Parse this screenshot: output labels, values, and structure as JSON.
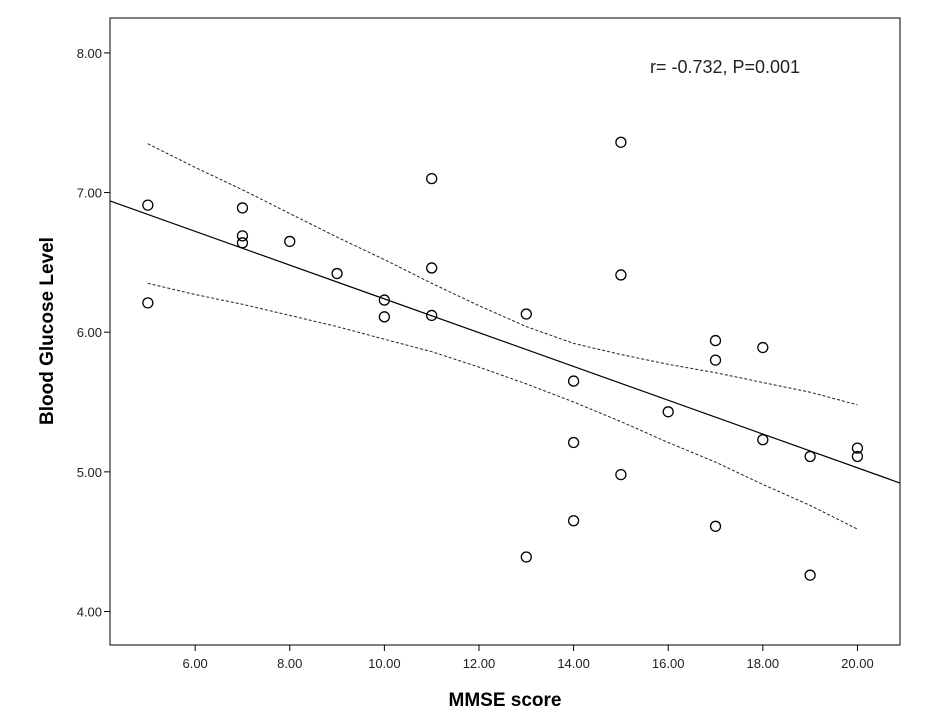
{
  "chart_data": {
    "type": "scatter",
    "title": "",
    "xlabel": "MMSE score",
    "ylabel": "Blood Glucose Level",
    "xlim": [
      4.2,
      20.9
    ],
    "ylim": [
      3.76,
      8.25
    ],
    "x_ticks": [
      6,
      8,
      10,
      12,
      14,
      16,
      18,
      20
    ],
    "x_tick_labels": [
      "6.00",
      "8.00",
      "10.00",
      "12.00",
      "14.00",
      "16.00",
      "18.00",
      "20.00"
    ],
    "y_ticks": [
      4,
      5,
      6,
      7,
      8
    ],
    "y_tick_labels": [
      "4.00",
      "5.00",
      "6.00",
      "7.00",
      "8.00"
    ],
    "grid": false,
    "annotation": "r= -0.732, P=0.001",
    "points": [
      {
        "x": 5,
        "y": 6.91
      },
      {
        "x": 5,
        "y": 6.21
      },
      {
        "x": 7,
        "y": 6.89
      },
      {
        "x": 7,
        "y": 6.69
      },
      {
        "x": 7,
        "y": 6.64
      },
      {
        "x": 8,
        "y": 6.65
      },
      {
        "x": 9,
        "y": 6.42
      },
      {
        "x": 10,
        "y": 6.23
      },
      {
        "x": 10,
        "y": 6.11
      },
      {
        "x": 11,
        "y": 7.1
      },
      {
        "x": 11,
        "y": 6.46
      },
      {
        "x": 11,
        "y": 6.12
      },
      {
        "x": 13,
        "y": 6.13
      },
      {
        "x": 13,
        "y": 4.39
      },
      {
        "x": 14,
        "y": 5.65
      },
      {
        "x": 14,
        "y": 5.21
      },
      {
        "x": 14,
        "y": 4.65
      },
      {
        "x": 15,
        "y": 7.36
      },
      {
        "x": 15,
        "y": 6.41
      },
      {
        "x": 15,
        "y": 4.98
      },
      {
        "x": 16,
        "y": 5.43
      },
      {
        "x": 17,
        "y": 5.94
      },
      {
        "x": 17,
        "y": 5.8
      },
      {
        "x": 17,
        "y": 4.61
      },
      {
        "x": 18,
        "y": 5.89
      },
      {
        "x": 18,
        "y": 5.23
      },
      {
        "x": 19,
        "y": 5.11
      },
      {
        "x": 19,
        "y": 4.26
      },
      {
        "x": 20,
        "y": 5.17
      },
      {
        "x": 20,
        "y": 5.11
      }
    ],
    "fit_line": {
      "x": [
        4.2,
        20.9
      ],
      "y": [
        6.94,
        4.92
      ]
    },
    "ci_upper": {
      "x": [
        5,
        6,
        7,
        8,
        9,
        10,
        11,
        12,
        13,
        14,
        15,
        16,
        17,
        18,
        19,
        20
      ],
      "y": [
        7.35,
        7.18,
        7.02,
        6.85,
        6.68,
        6.52,
        6.35,
        6.19,
        6.04,
        5.92,
        5.84,
        5.77,
        5.71,
        5.64,
        5.57,
        5.48
      ]
    },
    "ci_lower": {
      "x": [
        5,
        6,
        7,
        8,
        9,
        10,
        11,
        12,
        13,
        14,
        15,
        16,
        17,
        18,
        19,
        20
      ],
      "y": [
        6.35,
        6.27,
        6.2,
        6.12,
        6.04,
        5.95,
        5.86,
        5.75,
        5.63,
        5.5,
        5.36,
        5.21,
        5.07,
        4.91,
        4.76,
        4.59
      ]
    }
  }
}
